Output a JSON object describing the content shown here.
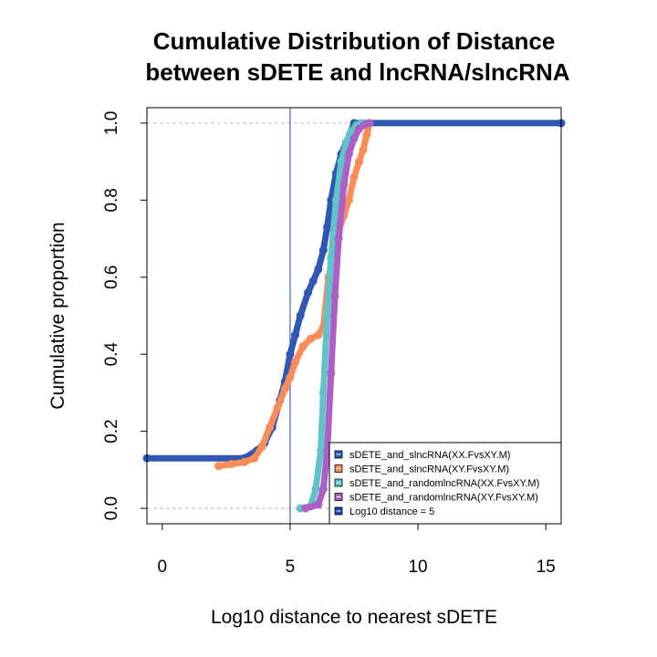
{
  "chart_data": {
    "type": "line",
    "title_line1": "Cumulative Distribution of Distance",
    "title_line2": "between sDETE and lncRNA/slncRNA",
    "xlabel": "Log10 distance to nearest sDETE",
    "ylabel": "Cumulative proportion",
    "xlim": [
      -0.6,
      15.6
    ],
    "ylim": [
      -0.04,
      1.04
    ],
    "x_ticks": [
      0,
      5,
      10,
      15
    ],
    "y_ticks": [
      0.0,
      0.2,
      0.4,
      0.6,
      0.8,
      1.0
    ],
    "x_tick_labels": [
      "0",
      "5",
      "10",
      "15"
    ],
    "y_tick_labels": [
      "0.0",
      "0.2",
      "0.4",
      "0.6",
      "0.8",
      "1.0"
    ],
    "reference_hlines": [
      0,
      1
    ],
    "vline": {
      "x": 5,
      "color": "#1f3fbf"
    },
    "legend_position": "bottom-right",
    "series": [
      {
        "name": "sDETE_and_slncRNA(XX.FvsXY.M)",
        "color": "#2f57b3",
        "x": [
          -0.6,
          3.2,
          3.7,
          4.0,
          4.3,
          4.6,
          4.8,
          5.0,
          5.2,
          5.4,
          5.7,
          5.9,
          6.1,
          6.3,
          6.45,
          6.6,
          6.8,
          7.0,
          7.2,
          7.5,
          15.6
        ],
        "y": [
          0.13,
          0.13,
          0.15,
          0.17,
          0.21,
          0.28,
          0.33,
          0.4,
          0.45,
          0.5,
          0.56,
          0.59,
          0.62,
          0.67,
          0.73,
          0.8,
          0.87,
          0.92,
          0.95,
          1.0,
          1.0
        ]
      },
      {
        "name": "sDETE_and_slncRNA(XY.FvsXY.M)",
        "color": "#fa8c5a",
        "x": [
          2.2,
          2.7,
          3.2,
          3.6,
          3.9,
          4.2,
          4.5,
          4.8,
          5.0,
          5.2,
          5.5,
          5.8,
          6.1,
          6.3,
          6.5,
          6.7,
          6.9,
          7.1,
          7.3,
          7.5,
          7.7,
          7.85,
          8.0,
          8.1
        ],
        "y": [
          0.11,
          0.115,
          0.12,
          0.13,
          0.16,
          0.21,
          0.26,
          0.31,
          0.34,
          0.38,
          0.42,
          0.44,
          0.45,
          0.47,
          0.6,
          0.66,
          0.72,
          0.76,
          0.8,
          0.86,
          0.9,
          0.93,
          0.97,
          1.0
        ]
      },
      {
        "name": "sDETE_and_randomlncRNA(XX.FvsXY.M)",
        "color": "#5fc3c8",
        "x": [
          5.4,
          5.8,
          6.0,
          6.2,
          6.3,
          6.45,
          6.6,
          6.8,
          7.0,
          7.2,
          7.4,
          7.6,
          7.8
        ],
        "y": [
          0.0,
          0.005,
          0.05,
          0.15,
          0.3,
          0.5,
          0.65,
          0.8,
          0.9,
          0.95,
          0.98,
          0.995,
          1.0
        ]
      },
      {
        "name": "sDETE_and_randomlncRNA(XY.FvsXY.M)",
        "color": "#ad5fc5",
        "x": [
          5.6,
          6.1,
          6.3,
          6.45,
          6.6,
          6.75,
          6.9,
          7.1,
          7.3,
          7.5,
          7.7,
          7.9,
          8.1
        ],
        "y": [
          0.0,
          0.01,
          0.05,
          0.15,
          0.35,
          0.55,
          0.7,
          0.84,
          0.92,
          0.96,
          0.985,
          0.995,
          1.0
        ]
      }
    ],
    "legend_entries": [
      {
        "label": "sDETE_and_slncRNA(XX.FvsXY.M)",
        "color": "#2f57b3"
      },
      {
        "label": "sDETE_and_slncRNA(XY.FvsXY.M)",
        "color": "#fa8c5a"
      },
      {
        "label": "sDETE_and_randomlncRNA(XX.FvsXY.M)",
        "color": "#5fc3c8"
      },
      {
        "label": "sDETE_and_randomlncRNA(XY.FvsXY.M)",
        "color": "#ad5fc5"
      },
      {
        "label": "Log10 distance = 5",
        "color": "#1f3fbf"
      }
    ]
  }
}
